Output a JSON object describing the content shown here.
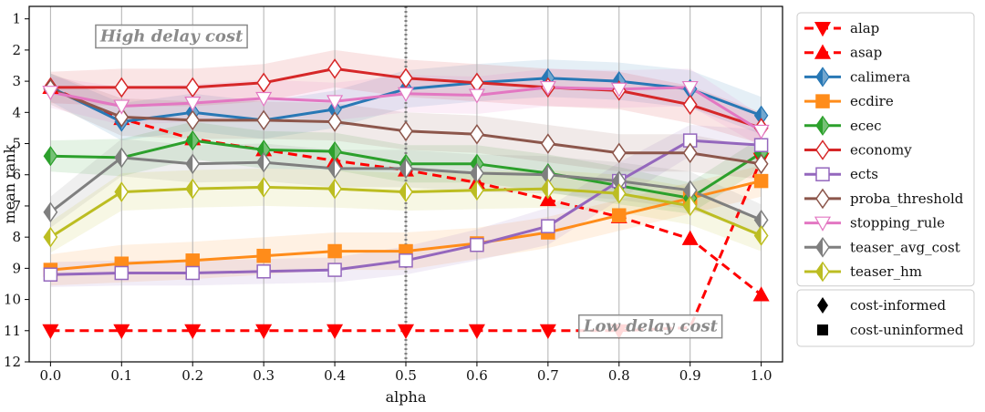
{
  "chart_data": {
    "type": "line",
    "xlabel": "alpha",
    "ylabel": "mean rank",
    "xlim": [
      -0.03,
      1.03
    ],
    "ylim": [
      12,
      0.6
    ],
    "x": [
      0.0,
      0.1,
      0.2,
      0.3,
      0.4,
      0.5,
      0.6,
      0.7,
      0.8,
      0.9,
      1.0
    ],
    "x_tick_labels": [
      "0.0",
      "0.1",
      "0.2",
      "0.3",
      "0.4",
      "0.5",
      "0.6",
      "0.7",
      "0.8",
      "0.9",
      "1.0"
    ],
    "y_ticks": [
      1,
      2,
      3,
      4,
      5,
      6,
      7,
      8,
      9,
      10,
      11,
      12
    ],
    "y_tick_labels": [
      "1",
      "2",
      "3",
      "4",
      "5",
      "6",
      "7",
      "8",
      "9",
      "10",
      "11",
      "12"
    ],
    "grid": "vertical",
    "vline": 0.5,
    "annotations": [
      {
        "text": "High delay cost",
        "x": 0.07,
        "y": 1.55
      },
      {
        "text": "Low delay cost",
        "x": 0.75,
        "y": 10.85
      }
    ],
    "series": [
      {
        "name": "alap",
        "color": "#ff0000",
        "marker": "tri_down",
        "dashed": true,
        "band": false,
        "values": [
          11.0,
          11.0,
          11.0,
          11.0,
          11.0,
          11.0,
          11.0,
          11.0,
          11.0,
          10.9,
          5.5
        ]
      },
      {
        "name": "asap",
        "color": "#ff0000",
        "marker": "tri_up",
        "dashed": true,
        "band": false,
        "values": [
          3.2,
          4.2,
          4.85,
          5.2,
          5.55,
          5.85,
          6.25,
          6.8,
          7.35,
          8.05,
          9.85
        ]
      },
      {
        "name": "calimera",
        "color": "#2878b5",
        "marker": "diamond",
        "open": false,
        "band": true,
        "spread": [
          0.45,
          0.6,
          0.6,
          0.6,
          0.6,
          0.6,
          0.6,
          0.6,
          0.6,
          0.6,
          0.6
        ],
        "values": [
          3.2,
          4.3,
          4.0,
          4.25,
          3.9,
          3.25,
          3.05,
          2.9,
          3.0,
          3.25,
          4.1
        ]
      },
      {
        "name": "ecdire",
        "color": "#ff8c1a",
        "marker": "square",
        "open": false,
        "band": true,
        "spread": [
          0.5,
          0.6,
          0.6,
          0.6,
          0.6,
          0.6,
          0.5,
          0.5,
          0.5,
          0.5,
          0.5
        ],
        "values": [
          9.05,
          8.85,
          8.75,
          8.6,
          8.45,
          8.45,
          8.2,
          7.85,
          7.3,
          6.75,
          6.2
        ]
      },
      {
        "name": "ecec",
        "color": "#2ca02c",
        "marker": "diamond",
        "open": false,
        "band": true,
        "spread": [
          0.5,
          0.6,
          0.6,
          0.6,
          0.6,
          0.6,
          0.6,
          0.6,
          0.6,
          0.5,
          0.5
        ],
        "values": [
          5.4,
          5.45,
          4.9,
          5.2,
          5.25,
          5.65,
          5.65,
          5.95,
          6.35,
          6.75,
          5.3
        ]
      },
      {
        "name": "economy",
        "color": "#d62728",
        "marker": "diamond",
        "open": true,
        "band": true,
        "spread": [
          0.5,
          0.6,
          0.6,
          0.6,
          0.6,
          0.6,
          0.6,
          0.6,
          0.6,
          0.6,
          0.5
        ],
        "values": [
          3.2,
          3.2,
          3.2,
          3.05,
          2.6,
          2.9,
          3.05,
          3.2,
          3.3,
          3.75,
          4.5
        ]
      },
      {
        "name": "ects",
        "color": "#9467bd",
        "marker": "square",
        "open": true,
        "band": true,
        "spread": [
          0.4,
          0.4,
          0.4,
          0.4,
          0.4,
          0.45,
          0.5,
          0.6,
          0.6,
          0.5,
          0.5
        ],
        "values": [
          9.2,
          9.15,
          9.15,
          9.1,
          9.05,
          8.75,
          8.25,
          7.65,
          6.2,
          4.9,
          5.05
        ]
      },
      {
        "name": "proba_threshold",
        "color": "#8c564b",
        "marker": "diamond",
        "open": true,
        "band": true,
        "spread": [
          0.5,
          0.6,
          0.6,
          0.6,
          0.6,
          0.6,
          0.6,
          0.6,
          0.6,
          0.6,
          0.5
        ],
        "values": [
          3.25,
          4.15,
          4.25,
          4.25,
          4.3,
          4.6,
          4.7,
          5.0,
          5.3,
          5.3,
          5.65
        ]
      },
      {
        "name": "stopping_rule",
        "color": "#e377c2",
        "marker": "tri_down",
        "open": true,
        "band": true,
        "spread": [
          0.5,
          0.6,
          0.6,
          0.6,
          0.6,
          0.6,
          0.6,
          0.6,
          0.6,
          0.6,
          0.5
        ],
        "values": [
          3.35,
          3.8,
          3.7,
          3.55,
          3.65,
          3.4,
          3.45,
          3.2,
          3.25,
          3.2,
          4.6
        ]
      },
      {
        "name": "teaser_avg_cost",
        "color": "#7f7f7f",
        "marker": "diamond",
        "open": false,
        "half": true,
        "band": true,
        "spread": [
          0.5,
          0.6,
          0.6,
          0.6,
          0.6,
          0.6,
          0.6,
          0.6,
          0.6,
          0.6,
          0.5
        ],
        "values": [
          7.2,
          5.45,
          5.65,
          5.6,
          5.8,
          5.8,
          5.95,
          6.0,
          6.2,
          6.5,
          7.45
        ]
      },
      {
        "name": "teaser_hm",
        "color": "#bcbd22",
        "marker": "diamond",
        "open": false,
        "half": true,
        "band": true,
        "spread": [
          0.5,
          0.6,
          0.6,
          0.6,
          0.6,
          0.6,
          0.6,
          0.6,
          0.6,
          0.6,
          0.5
        ],
        "values": [
          8.0,
          6.55,
          6.45,
          6.4,
          6.45,
          6.55,
          6.5,
          6.45,
          6.6,
          7.0,
          7.95
        ]
      }
    ],
    "marker_legend": [
      {
        "label": "cost-informed",
        "marker": "diamond"
      },
      {
        "label": "cost-uninformed",
        "marker": "square"
      }
    ]
  }
}
